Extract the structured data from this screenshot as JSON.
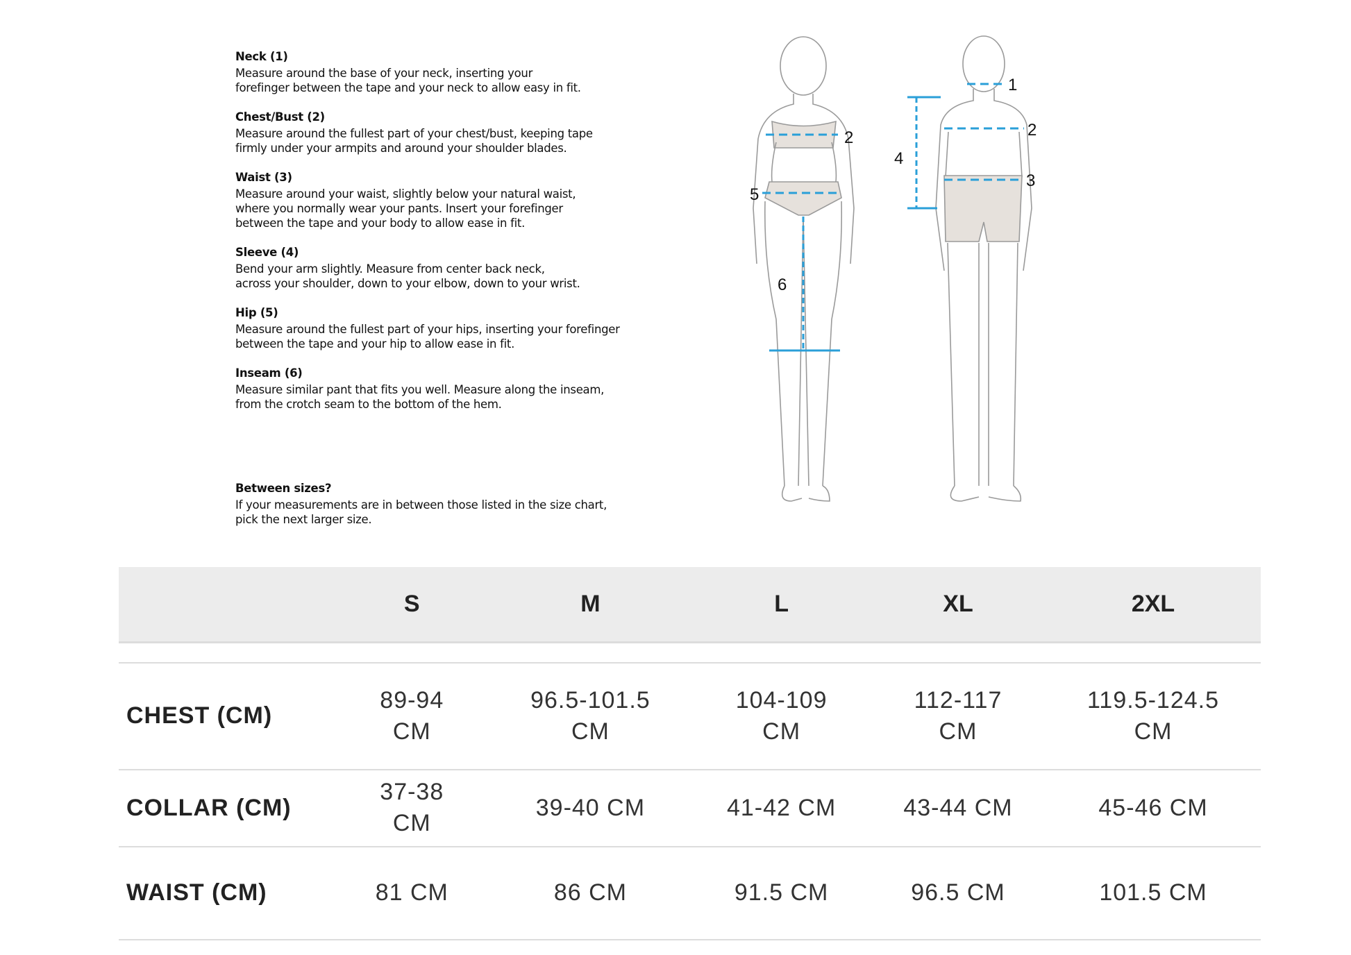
{
  "guide": [
    {
      "title": "Neck (1)",
      "text": "Measure around the base of your neck, inserting your\nforefinger between the tape and your neck to allow easy in fit."
    },
    {
      "title": "Chest/Bust (2)",
      "text": "Measure around the fullest part of your chest/bust, keeping tape\nfirmly under your armpits and around your shoulder blades."
    },
    {
      "title": "Waist (3)",
      "text": "Measure around your waist, slightly below your natural waist,\nwhere you normally wear your pants. Insert your forefinger\nbetween the tape and your body to allow ease in fit."
    },
    {
      "title": "Sleeve (4)",
      "text": "Bend your arm slightly. Measure from center back neck,\nacross your shoulder, down to your elbow, down to your wrist."
    },
    {
      "title": "Hip (5)",
      "text": "Measure around the fullest part of your hips, inserting your forefinger\nbetween the tape and your hip to allow ease in fit."
    },
    {
      "title": "Inseam (6)",
      "text": "Measure similar pant that fits you well. Measure along the inseam,\nfrom the crotch seam to the bottom of the hem."
    }
  ],
  "between": {
    "title": "Between sizes?",
    "text": "If your measurements are in between those listed in the size chart,\npick the next larger size."
  },
  "figure_labels": {
    "woman": [
      "2",
      "5",
      "6"
    ],
    "man": [
      "1",
      "2",
      "3",
      "4"
    ]
  },
  "colors": {
    "measure_line": "#2a9fd8",
    "garment": "#e6e1dc",
    "header_bg": "#ececec"
  },
  "table": {
    "headers": [
      "",
      "S",
      "M",
      "L",
      "XL",
      "2XL"
    ],
    "rows": [
      {
        "label": "CHEST (CM)",
        "values": [
          "89-94 CM",
          "96.5-101.5 CM",
          "104-109 CM",
          "112-117 CM",
          "119.5-124.5 CM"
        ]
      },
      {
        "label": "COLLAR (CM)",
        "values": [
          "37-38 CM",
          "39-40 CM",
          "41-42 CM",
          "43-44 CM",
          "45-46 CM"
        ]
      },
      {
        "label": "WAIST (CM)",
        "values": [
          "81 CM",
          "86 CM",
          "91.5 CM",
          "96.5 CM",
          "101.5 CM"
        ]
      }
    ]
  }
}
